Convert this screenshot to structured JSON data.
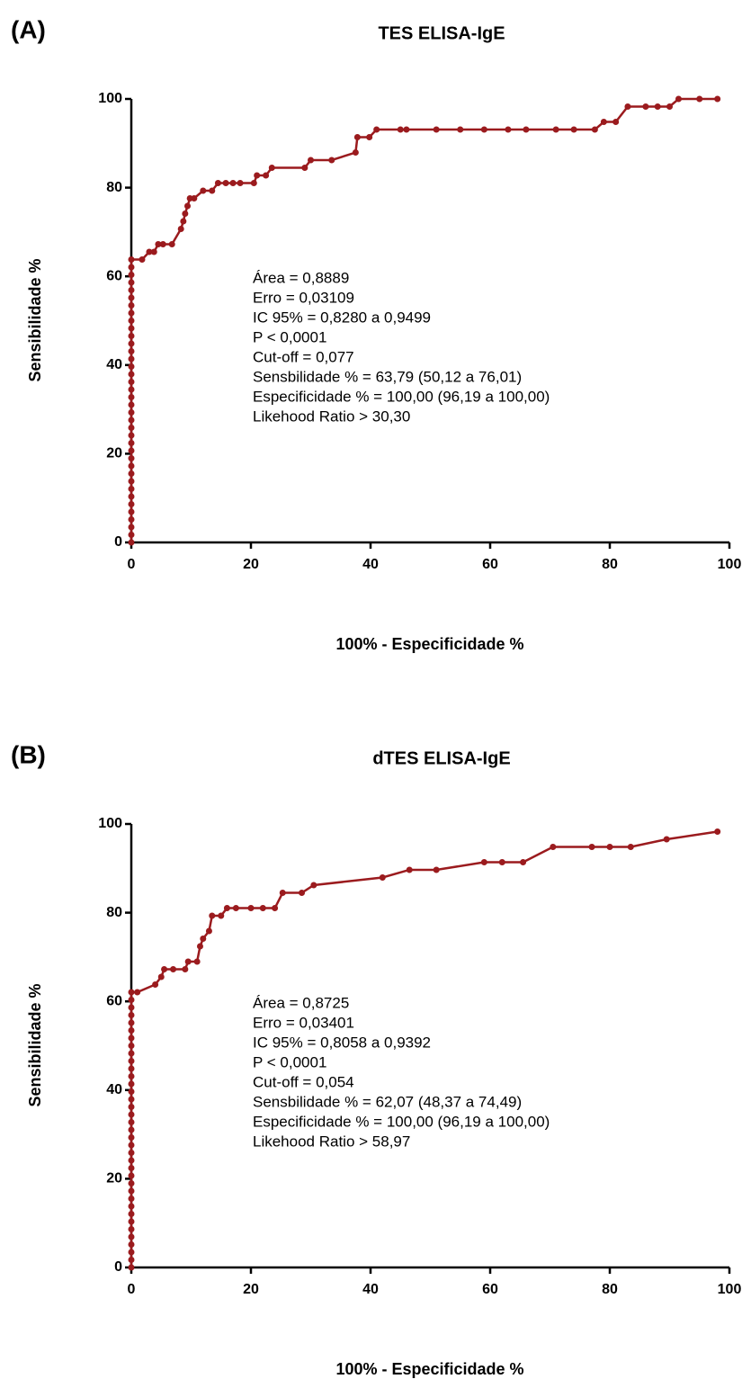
{
  "chart_data": [
    {
      "type": "line",
      "panel_label": "(A)",
      "title": "TES ELISA-IgE",
      "x_label": "100% - Especificidade %",
      "y_label": "Sensibilidade %",
      "xlim": [
        0,
        100
      ],
      "ylim": [
        0,
        100
      ],
      "xticks": [
        0,
        20,
        40,
        60,
        80,
        100
      ],
      "yticks": [
        0,
        20,
        40,
        60,
        80,
        100
      ],
      "annotations": [
        "Área = 0,8889",
        "Erro = 0,03109",
        "IC 95% = 0,8280 a 0,9499",
        "P < 0,0001",
        "Cut-off = 0,077",
        "Sensbilidade % = 63,79 (50,12 a 76,01)",
        "Especificidade % = 100,00 (96,19 a 100,00)",
        "Likehood Ratio > 30,30"
      ],
      "series": [
        {
          "color": "#9b1b1e",
          "x": [
            0,
            0,
            0,
            0,
            0,
            0,
            0,
            0,
            0,
            0,
            0,
            0,
            0,
            0,
            0,
            0,
            0,
            0,
            0,
            0,
            0,
            0,
            0,
            0,
            0,
            0,
            0,
            0,
            0,
            0,
            0,
            0,
            0,
            0,
            0,
            0,
            0,
            0,
            1.8,
            3.0,
            3.8,
            4.5,
            5.3,
            6.8,
            8.3,
            8.7,
            9.0,
            9.4,
            9.8,
            10.5,
            12,
            13.5,
            14.5,
            15.8,
            17,
            18.2,
            20.5,
            21,
            22.5,
            23.5,
            29,
            30,
            33.5,
            37.5,
            37.8,
            39.8,
            41,
            45,
            46,
            51,
            55,
            59,
            63,
            66,
            71,
            74,
            77.5,
            79,
            81,
            83,
            86,
            88,
            90,
            91.5,
            95,
            98
          ],
          "values": [
            0,
            1.72,
            3.45,
            5.17,
            6.9,
            8.62,
            10.34,
            12.07,
            13.79,
            15.52,
            17.24,
            18.97,
            20.69,
            22.41,
            24.14,
            25.86,
            27.59,
            29.31,
            31.03,
            32.76,
            34.48,
            36.21,
            37.93,
            39.66,
            41.38,
            43.1,
            44.83,
            46.55,
            48.28,
            50,
            51.72,
            53.45,
            55.17,
            56.9,
            58.62,
            60.34,
            62.07,
            63.79,
            63.79,
            65.52,
            65.52,
            67.24,
            67.24,
            67.24,
            70.69,
            72.41,
            74.14,
            75.86,
            77.59,
            77.59,
            79.31,
            79.31,
            81.03,
            81.03,
            81.03,
            81.03,
            81.03,
            82.76,
            82.76,
            84.48,
            84.48,
            86.21,
            86.21,
            87.93,
            91.38,
            91.38,
            93.1,
            93.1,
            93.1,
            93.1,
            93.1,
            93.1,
            93.1,
            93.1,
            93.1,
            93.1,
            93.1,
            94.83,
            94.83,
            98.28,
            98.28,
            98.28,
            98.28,
            100,
            100,
            100
          ]
        }
      ]
    },
    {
      "type": "line",
      "panel_label": "(B)",
      "title": "dTES ELISA-IgE",
      "x_label": "100% - Especificidade %",
      "y_label": "Sensibilidade %",
      "xlim": [
        0,
        100
      ],
      "ylim": [
        0,
        100
      ],
      "xticks": [
        0,
        20,
        40,
        60,
        80,
        100
      ],
      "yticks": [
        0,
        20,
        40,
        60,
        80,
        100
      ],
      "annotations": [
        "Área = 0,8725",
        "Erro = 0,03401",
        "IC 95% = 0,8058 a 0,9392",
        "P < 0,0001",
        "Cut-off = 0,054",
        "Sensbilidade % = 62,07 (48,37 a 74,49)",
        "Especificidade % = 100,00 (96,19 a 100,00)",
        "Likehood Ratio > 58,97"
      ],
      "series": [
        {
          "color": "#9b1b1e",
          "x": [
            0,
            0,
            0,
            0,
            0,
            0,
            0,
            0,
            0,
            0,
            0,
            0,
            0,
            0,
            0,
            0,
            0,
            0,
            0,
            0,
            0,
            0,
            0,
            0,
            0,
            0,
            0,
            0,
            0,
            0,
            0,
            0,
            0,
            0,
            0,
            0,
            0,
            1,
            4,
            5,
            5.5,
            7,
            9,
            9.5,
            11,
            11.5,
            12,
            13,
            13.5,
            15,
            16,
            17.5,
            20,
            22,
            24,
            25.3,
            28.5,
            30.5,
            42,
            46.5,
            51,
            59,
            62,
            65.5,
            70.5,
            77,
            80,
            83.5,
            89.5,
            98
          ],
          "values": [
            0,
            1.72,
            3.45,
            5.17,
            6.9,
            8.62,
            10.34,
            12.07,
            13.79,
            15.52,
            17.24,
            18.97,
            20.69,
            22.41,
            24.14,
            25.86,
            27.59,
            29.31,
            31.03,
            32.76,
            34.48,
            36.21,
            37.93,
            39.66,
            41.38,
            43.1,
            44.83,
            46.55,
            48.28,
            50,
            51.72,
            53.45,
            55.17,
            56.9,
            58.62,
            60.34,
            62.07,
            62.07,
            63.79,
            65.52,
            67.24,
            67.24,
            67.24,
            68.97,
            68.97,
            72.41,
            74.14,
            75.86,
            79.31,
            79.31,
            81.03,
            81.03,
            81.03,
            81.03,
            81.03,
            84.48,
            84.48,
            86.21,
            87.93,
            89.66,
            89.66,
            91.38,
            91.38,
            91.38,
            94.83,
            94.83,
            94.83,
            94.83,
            96.55,
            98.28
          ]
        }
      ]
    }
  ]
}
